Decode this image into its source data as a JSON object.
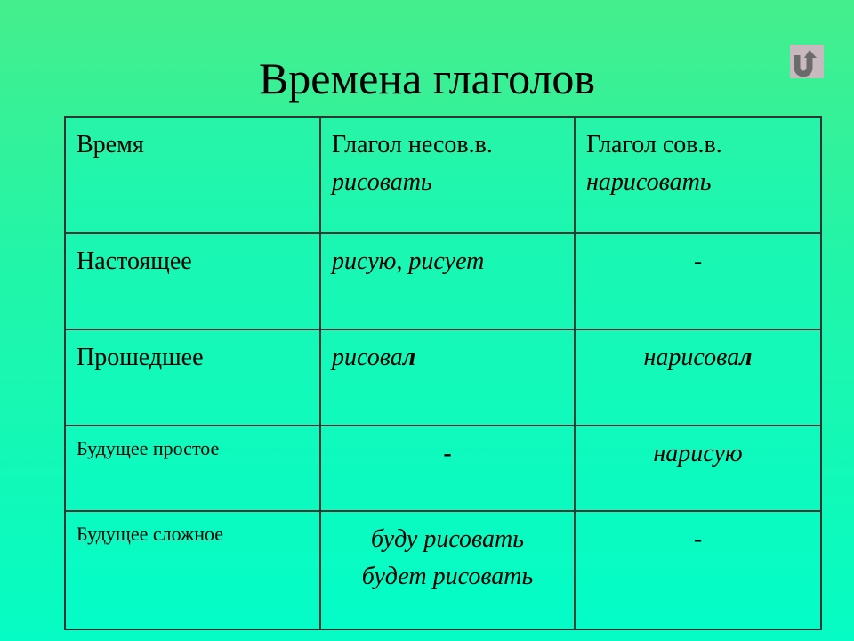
{
  "title": "Времена глаголов",
  "icons": {
    "back": "return-arrow-icon"
  },
  "colors": {
    "background_top": "#45ee8c",
    "background_bottom": "#05fcc4",
    "back_button": "#c8b9bf"
  },
  "table": {
    "header": {
      "col1": "Время",
      "col2_line1": "Глагол несов.в.",
      "col2_line2": "рисовать",
      "col3_line1": "Глагол сов.в.",
      "col3_line2": "нарисовать"
    },
    "rows": [
      {
        "tense": "Настоящее",
        "imperf": "рисую, рисует",
        "perf": "-"
      },
      {
        "tense": "Прошедшее",
        "imperf_stem": "рисова",
        "imperf_end": "л",
        "perf_stem": "нарисова",
        "perf_end": "л"
      },
      {
        "tense": "Будущее простое",
        "imperf": "-",
        "perf": "нарисую"
      },
      {
        "tense": "Будущее сложное",
        "imperf_line1": "буду рисовать",
        "imperf_line2": "будет рисовать",
        "perf": "-"
      }
    ]
  }
}
